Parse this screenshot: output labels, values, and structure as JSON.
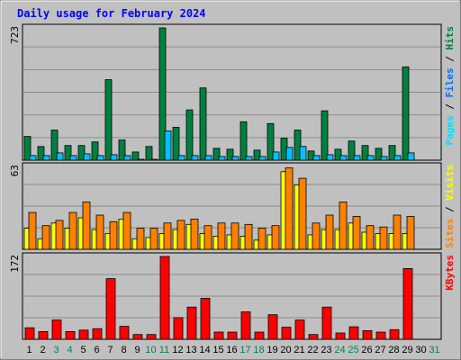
{
  "colors": {
    "background": "#c0c0c0",
    "panel": "#c0c0c0",
    "grid": "#8c8c8c",
    "title": "#0000ff",
    "hits": "#008040",
    "files": "#00c0ff",
    "pages": "#00e0ff",
    "visits": "#ffff00",
    "sites": "#ff8000",
    "kbytes": "#ff0000",
    "weekend_day": "#00805c",
    "weekday_day": "#000000"
  },
  "chart_data": {
    "type": "bar",
    "title": "Daily usage for February 2024",
    "categories": [
      "1",
      "2",
      "3",
      "4",
      "5",
      "6",
      "7",
      "8",
      "9",
      "10",
      "11",
      "12",
      "13",
      "14",
      "15",
      "16",
      "17",
      "18",
      "19",
      "20",
      "21",
      "22",
      "23",
      "24",
      "25",
      "26",
      "27",
      "28",
      "29",
      "30",
      "31"
    ],
    "weekend_days": [
      "3",
      "4",
      "10",
      "11",
      "17",
      "18",
      "24",
      "25",
      "31"
    ],
    "panels": [
      {
        "id": "hits-files-pages",
        "max_label": "723",
        "ylim": [
          0,
          723
        ],
        "legend": [
          {
            "label": "Hits",
            "color": "#008040"
          },
          {
            "label": "/",
            "color": "#000000"
          },
          {
            "label": "Files",
            "color": "#0070ff"
          },
          {
            "label": "/",
            "color": "#000000"
          },
          {
            "label": "Pages",
            "color": "#00e0ff"
          }
        ],
        "series": [
          {
            "name": "Hits",
            "color": "#008040",
            "values": [
              130,
              75,
              165,
              80,
              80,
              100,
              440,
              110,
              45,
              75,
              723,
              180,
              275,
              395,
              65,
              60,
              210,
              55,
              200,
              120,
              165,
              50,
              270,
              60,
              105,
              80,
              65,
              80,
              510,
              0,
              0
            ]
          },
          {
            "name": "Files",
            "color": "#00c0ff",
            "values": [
              25,
              25,
              40,
              25,
              35,
              25,
              30,
              25,
              5,
              5,
              160,
              25,
              25,
              25,
              20,
              20,
              20,
              20,
              45,
              70,
              75,
              25,
              30,
              25,
              25,
              25,
              20,
              25,
              40,
              0,
              0
            ]
          }
        ]
      },
      {
        "id": "visits-sites",
        "max_label": "63",
        "ylim": [
          0,
          63
        ],
        "legend": [
          {
            "label": "Visits",
            "color": "#ffff00"
          },
          {
            "label": "/",
            "color": "#000000"
          },
          {
            "label": "Sites",
            "color": "#ff8000"
          }
        ],
        "series": [
          {
            "name": "Visits",
            "color": "#ffff00",
            "values": [
              16,
              8,
              20,
              16,
              24,
              15,
              12,
              23,
              8,
              9,
              12,
              15,
              19,
              12,
              10,
              11,
              10,
              7,
              11,
              59,
              49,
              11,
              15,
              15,
              20,
              13,
              12,
              12,
              12,
              0,
              0
            ]
          },
          {
            "name": "Sites",
            "color": "#ff8000",
            "values": [
              28,
              18,
              22,
              28,
              36,
              26,
              21,
              28,
              16,
              16,
              20,
              22,
              23,
              18,
              20,
              20,
              19,
              16,
              18,
              62,
              54,
              20,
              26,
              36,
              25,
              18,
              17,
              26,
              25,
              0,
              0
            ]
          }
        ]
      },
      {
        "id": "kbytes",
        "max_label": "172",
        "ylim": [
          0,
          172
        ],
        "legend": [
          {
            "label": "KBytes",
            "color": "#ff0000"
          }
        ],
        "series": [
          {
            "name": "KBytes",
            "color": "#ff0000",
            "values": [
              24,
              16,
              40,
              16,
              19,
              22,
              126,
              27,
              10,
              10,
              172,
              45,
              67,
              85,
              15,
              15,
              57,
              15,
              51,
              25,
              40,
              10,
              67,
              13,
              26,
              18,
              15,
              20,
              147,
              0,
              0
            ]
          }
        ]
      }
    ]
  }
}
